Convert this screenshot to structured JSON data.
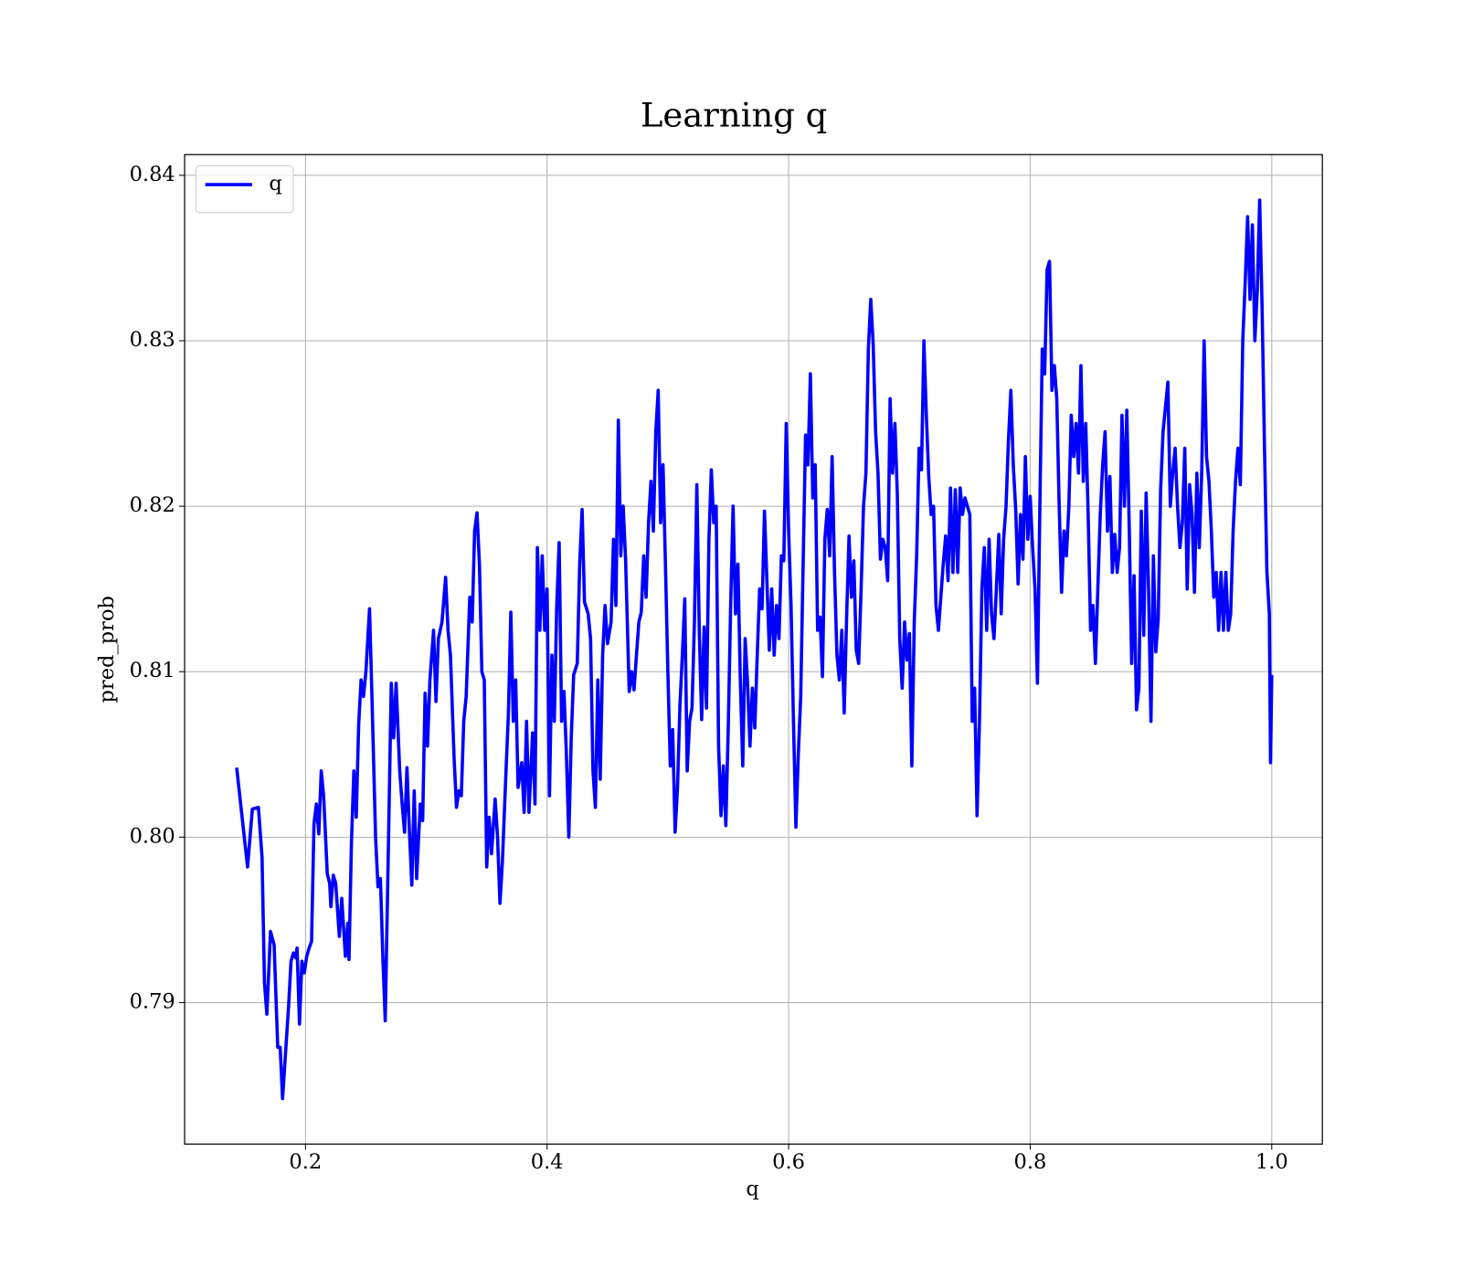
{
  "chart_data": {
    "type": "line",
    "title": "Learning q",
    "x_label": "q",
    "y_label": "pred_prob",
    "xlim": [
      0.0999,
      1.0419
    ],
    "ylim": [
      0.78145,
      0.84125
    ],
    "xticks": [
      0.2,
      0.4,
      0.6,
      0.8,
      {
        "value": 1,
        "label": "1.0"
      }
    ],
    "yticks": [
      0.79,
      {
        "value": 0.8,
        "label": "0.80"
      },
      0.81,
      0.82,
      0.83,
      0.84
    ],
    "grid": true,
    "legend": "upper left",
    "x": [
      0.143,
      0.152,
      0.156,
      0.161,
      0.164,
      0.166,
      0.168,
      0.171,
      0.174,
      0.177,
      0.179,
      0.181,
      0.186,
      0.188,
      0.19,
      0.192,
      0.193,
      0.195,
      0.197,
      0.199,
      0.201,
      0.203,
      0.205,
      0.207,
      0.209,
      0.211,
      0.213,
      0.215,
      0.218,
      0.22,
      0.221,
      0.223,
      0.225,
      0.228,
      0.23,
      0.233,
      0.235,
      0.236,
      0.238,
      0.24,
      0.242,
      0.244,
      0.246,
      0.248,
      0.25,
      0.253,
      0.255,
      0.258,
      0.26,
      0.262,
      0.264,
      0.266,
      0.269,
      0.271,
      0.273,
      0.275,
      0.278,
      0.28,
      0.282,
      0.284,
      0.286,
      0.288,
      0.29,
      0.292,
      0.295,
      0.297,
      0.299,
      0.301,
      0.303,
      0.306,
      0.308,
      0.31,
      0.313,
      0.316,
      0.318,
      0.32,
      0.323,
      0.325,
      0.327,
      0.329,
      0.331,
      0.333,
      0.336,
      0.338,
      0.34,
      0.342,
      0.344,
      0.346,
      0.348,
      0.35,
      0.352,
      0.354,
      0.357,
      0.359,
      0.361,
      0.363,
      0.366,
      0.368,
      0.37,
      0.372,
      0.374,
      0.376,
      0.379,
      0.381,
      0.383,
      0.385,
      0.388,
      0.39,
      0.392,
      0.394,
      0.396,
      0.398,
      0.4,
      0.402,
      0.404,
      0.406,
      0.408,
      0.41,
      0.412,
      0.414,
      0.416,
      0.418,
      0.42,
      0.422,
      0.425,
      0.427,
      0.429,
      0.431,
      0.434,
      0.436,
      0.438,
      0.44,
      0.442,
      0.444,
      0.446,
      0.448,
      0.45,
      0.453,
      0.455,
      0.457,
      0.459,
      0.461,
      0.463,
      0.465,
      0.468,
      0.47,
      0.472,
      0.474,
      0.476,
      0.478,
      0.48,
      0.482,
      0.484,
      0.486,
      0.488,
      0.49,
      0.492,
      0.494,
      0.496,
      0.498,
      0.5,
      0.502,
      0.504,
      0.506,
      0.508,
      0.51,
      0.512,
      0.514,
      0.516,
      0.518,
      0.52,
      0.522,
      0.524,
      0.526,
      0.528,
      0.53,
      0.532,
      0.534,
      0.536,
      0.538,
      0.54,
      0.542,
      0.544,
      0.546,
      0.548,
      0.55,
      0.552,
      0.554,
      0.556,
      0.558,
      0.56,
      0.562,
      0.564,
      0.566,
      0.568,
      0.57,
      0.572,
      0.574,
      0.576,
      0.578,
      0.58,
      0.582,
      0.584,
      0.586,
      0.588,
      0.59,
      0.592,
      0.594,
      0.596,
      0.598,
      0.6,
      0.602,
      0.604,
      0.606,
      0.608,
      0.61,
      0.612,
      0.614,
      0.616,
      0.618,
      0.62,
      0.622,
      0.624,
      0.626,
      0.628,
      0.63,
      0.632,
      0.634,
      0.636,
      0.638,
      0.64,
      0.642,
      0.644,
      0.646,
      0.648,
      0.65,
      0.652,
      0.654,
      0.656,
      0.658,
      0.66,
      0.662,
      0.664,
      0.666,
      0.668,
      0.67,
      0.672,
      0.674,
      0.676,
      0.678,
      0.68,
      0.682,
      0.684,
      0.686,
      0.688,
      0.69,
      0.692,
      0.694,
      0.696,
      0.698,
      0.7,
      0.702,
      0.704,
      0.706,
      0.708,
      0.71,
      0.712,
      0.714,
      0.716,
      0.718,
      0.72,
      0.722,
      0.724,
      0.726,
      0.728,
      0.73,
      0.732,
      0.734,
      0.736,
      0.738,
      0.74,
      0.742,
      0.744,
      0.746,
      0.748,
      0.75,
      0.752,
      0.754,
      0.756,
      0.758,
      0.76,
      0.762,
      0.764,
      0.766,
      0.768,
      0.77,
      0.772,
      0.774,
      0.776,
      0.778,
      0.78,
      0.782,
      0.784,
      0.786,
      0.788,
      0.79,
      0.792,
      0.794,
      0.796,
      0.798,
      0.8,
      0.802,
      0.804,
      0.806,
      0.808,
      0.81,
      0.812,
      0.814,
      0.816,
      0.818,
      0.82,
      0.822,
      0.824,
      0.826,
      0.828,
      0.83,
      0.832,
      0.834,
      0.836,
      0.838,
      0.84,
      0.842,
      0.844,
      0.846,
      0.848,
      0.85,
      0.852,
      0.854,
      0.856,
      0.858,
      0.86,
      0.862,
      0.864,
      0.866,
      0.868,
      0.87,
      0.872,
      0.874,
      0.876,
      0.878,
      0.88,
      0.882,
      0.884,
      0.886,
      0.888,
      0.89,
      0.892,
      0.894,
      0.896,
      0.898,
      0.9,
      0.902,
      0.904,
      0.906,
      0.908,
      0.91,
      0.912,
      0.914,
      0.916,
      0.918,
      0.92,
      0.922,
      0.924,
      0.926,
      0.928,
      0.93,
      0.932,
      0.934,
      0.936,
      0.938,
      0.94,
      0.942,
      0.944,
      0.946,
      0.948,
      0.95,
      0.952,
      0.954,
      0.956,
      0.958,
      0.96,
      0.962,
      0.964,
      0.966,
      0.968,
      0.97,
      0.972,
      0.974,
      0.976,
      0.978,
      0.98,
      0.982,
      0.984,
      0.986,
      0.988,
      0.99,
      0.992,
      0.994,
      0.996,
      0.998,
      0.999,
      1.0
    ],
    "series": [
      {
        "name": "q",
        "color": "#0000ff",
        "values": [
          0.8042,
          0.7982,
          0.8017,
          0.8018,
          0.7988,
          0.7912,
          0.7893,
          0.7943,
          0.7935,
          0.7873,
          0.7873,
          0.7842,
          0.7898,
          0.7925,
          0.793,
          0.7927,
          0.7933,
          0.7887,
          0.7925,
          0.7918,
          0.7928,
          0.7933,
          0.7937,
          0.8008,
          0.802,
          0.8002,
          0.804,
          0.8025,
          0.7978,
          0.7972,
          0.7958,
          0.7977,
          0.7972,
          0.794,
          0.7963,
          0.7928,
          0.7948,
          0.7926,
          0.7996,
          0.804,
          0.8012,
          0.8068,
          0.8095,
          0.8085,
          0.81,
          0.8138,
          0.8085,
          0.8,
          0.797,
          0.7975,
          0.7928,
          0.7889,
          0.801,
          0.8093,
          0.806,
          0.8093,
          0.804,
          0.802,
          0.8003,
          0.8042,
          0.8004,
          0.7971,
          0.8028,
          0.7975,
          0.802,
          0.801,
          0.8087,
          0.8055,
          0.8095,
          0.8125,
          0.8082,
          0.812,
          0.813,
          0.8157,
          0.8125,
          0.811,
          0.8048,
          0.8018,
          0.8028,
          0.8025,
          0.807,
          0.8085,
          0.8145,
          0.813,
          0.8185,
          0.8196,
          0.8165,
          0.81,
          0.8095,
          0.7982,
          0.8012,
          0.799,
          0.8023,
          0.8,
          0.796,
          0.7985,
          0.804,
          0.8075,
          0.8136,
          0.807,
          0.8095,
          0.803,
          0.8045,
          0.8015,
          0.807,
          0.8015,
          0.8063,
          0.802,
          0.8175,
          0.8125,
          0.817,
          0.8125,
          0.815,
          0.8025,
          0.811,
          0.807,
          0.814,
          0.8178,
          0.807,
          0.8088,
          0.805,
          0.8,
          0.806,
          0.8098,
          0.8105,
          0.8165,
          0.8198,
          0.8142,
          0.8135,
          0.812,
          0.804,
          0.8018,
          0.8095,
          0.8035,
          0.811,
          0.814,
          0.8117,
          0.813,
          0.818,
          0.814,
          0.8252,
          0.817,
          0.82,
          0.8168,
          0.8088,
          0.81,
          0.8089,
          0.811,
          0.813,
          0.8136,
          0.817,
          0.8145,
          0.819,
          0.8215,
          0.8185,
          0.8245,
          0.827,
          0.819,
          0.8225,
          0.8165,
          0.81,
          0.8043,
          0.8065,
          0.8003,
          0.803,
          0.808,
          0.811,
          0.8144,
          0.804,
          0.807,
          0.8078,
          0.813,
          0.8213,
          0.8125,
          0.8071,
          0.8127,
          0.8078,
          0.818,
          0.8222,
          0.819,
          0.82,
          0.8055,
          0.8013,
          0.8043,
          0.8007,
          0.8066,
          0.814,
          0.82,
          0.8135,
          0.8165,
          0.8095,
          0.8043,
          0.812,
          0.8093,
          0.8055,
          0.809,
          0.8066,
          0.811,
          0.815,
          0.8138,
          0.8197,
          0.8155,
          0.8113,
          0.815,
          0.811,
          0.814,
          0.812,
          0.817,
          0.8167,
          0.825,
          0.8185,
          0.814,
          0.807,
          0.8006,
          0.805,
          0.8085,
          0.8165,
          0.8243,
          0.8225,
          0.828,
          0.8205,
          0.8225,
          0.8125,
          0.8133,
          0.8097,
          0.818,
          0.8198,
          0.817,
          0.823,
          0.816,
          0.811,
          0.8095,
          0.8125,
          0.8075,
          0.8133,
          0.8182,
          0.8145,
          0.8167,
          0.8113,
          0.8105,
          0.815,
          0.82,
          0.822,
          0.8295,
          0.8325,
          0.8298,
          0.8245,
          0.822,
          0.8168,
          0.818,
          0.8175,
          0.8155,
          0.8265,
          0.822,
          0.825,
          0.8207,
          0.812,
          0.809,
          0.813,
          0.8107,
          0.8123,
          0.8043,
          0.813,
          0.817,
          0.8235,
          0.8222,
          0.83,
          0.8255,
          0.8218,
          0.8195,
          0.82,
          0.814,
          0.8125,
          0.8145,
          0.8165,
          0.8182,
          0.8155,
          0.8211,
          0.816,
          0.821,
          0.816,
          0.8211,
          0.8195,
          0.8205,
          0.82,
          0.8195,
          0.807,
          0.809,
          0.8013,
          0.807,
          0.815,
          0.8175,
          0.8125,
          0.818,
          0.8135,
          0.812,
          0.815,
          0.8183,
          0.8135,
          0.818,
          0.82,
          0.824,
          0.827,
          0.8225,
          0.8198,
          0.8153,
          0.8195,
          0.8168,
          0.823,
          0.818,
          0.8206,
          0.8175,
          0.815,
          0.8093,
          0.82,
          0.8295,
          0.828,
          0.8343,
          0.8348,
          0.827,
          0.8285,
          0.8265,
          0.82,
          0.8148,
          0.8185,
          0.817,
          0.82,
          0.8255,
          0.823,
          0.825,
          0.822,
          0.8285,
          0.8215,
          0.825,
          0.8195,
          0.8125,
          0.814,
          0.8105,
          0.815,
          0.8195,
          0.8225,
          0.8245,
          0.8185,
          0.8218,
          0.816,
          0.8183,
          0.816,
          0.8175,
          0.8255,
          0.82,
          0.8258,
          0.8187,
          0.8105,
          0.8158,
          0.8077,
          0.809,
          0.8197,
          0.8122,
          0.8208,
          0.815,
          0.807,
          0.817,
          0.8112,
          0.8132,
          0.821,
          0.8245,
          0.826,
          0.8275,
          0.82,
          0.822,
          0.8235,
          0.82,
          0.8175,
          0.819,
          0.8235,
          0.815,
          0.8213,
          0.8195,
          0.8148,
          0.822,
          0.8175,
          0.822,
          0.83,
          0.823,
          0.8215,
          0.8185,
          0.8145,
          0.816,
          0.8125,
          0.816,
          0.8125,
          0.816,
          0.8125,
          0.8135,
          0.8185,
          0.8215,
          0.8235,
          0.8213,
          0.83,
          0.8335,
          0.8375,
          0.8325,
          0.837,
          0.83,
          0.833,
          0.8385,
          0.832,
          0.8235,
          0.816,
          0.8135,
          0.8045,
          0.8098
        ]
      }
    ]
  }
}
